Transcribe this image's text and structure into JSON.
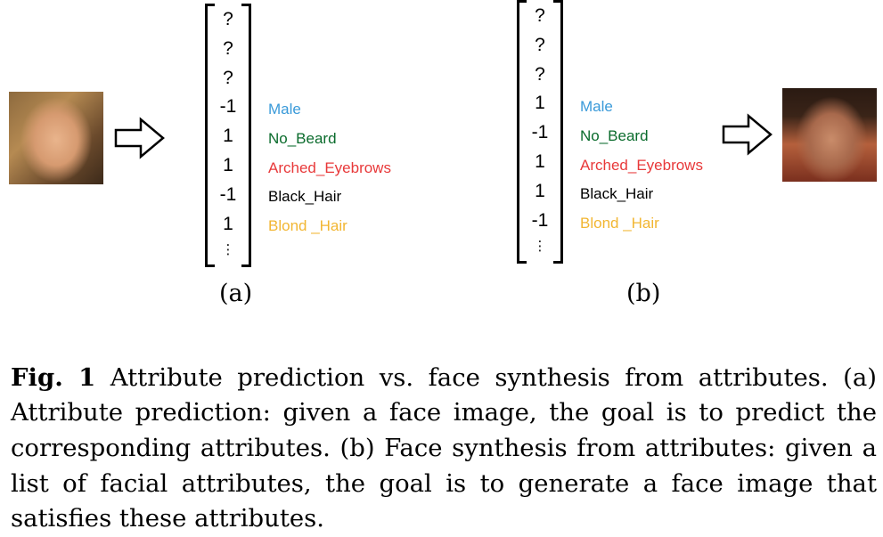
{
  "figure": {
    "panel_a": {
      "vector": [
        "?",
        "?",
        "?",
        "-1",
        "1",
        "1",
        "-1",
        "1"
      ],
      "vdots": "⋮",
      "label": "(a)"
    },
    "panel_b": {
      "vector": [
        "?",
        "?",
        "?",
        "1",
        "-1",
        "1",
        "1",
        "-1"
      ],
      "vdots": "⋮",
      "label": "(b)"
    },
    "attributes": [
      {
        "name": "Male",
        "color": "#3a9ad9"
      },
      {
        "name": "No_Beard",
        "color": "#0a6b2c"
      },
      {
        "name": "Arched_Eyebrows",
        "color": "#e8393a"
      },
      {
        "name": "Black_Hair",
        "color": "#000000"
      },
      {
        "name": "Blond _Hair",
        "color": "#f2b632"
      }
    ]
  },
  "caption": {
    "lead": "Fig. 1",
    "body": " Attribute prediction vs. face synthesis from at­tributes. (a) Attribute prediction: given a face image, the goal is to predict the corresponding attributes. (b) Face synthesis from attributes: given a list of facial attributes, the goal is to generate a face image that satisfies these attributes."
  }
}
